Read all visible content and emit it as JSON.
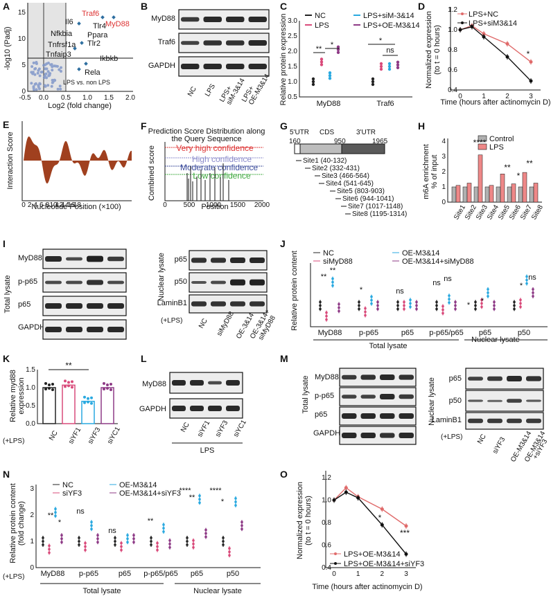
{
  "panelA": {
    "letter": "A",
    "ylabel": "-log10 (Padj)",
    "xlabel": "Log2 (fold change)",
    "legend": "LPS vs. non LPS",
    "xticks": [
      "-0.5",
      "0.0",
      "0.5",
      "1.0",
      "1.5",
      "2.0"
    ],
    "yticks": [
      "0",
      "5",
      "10",
      "15"
    ],
    "genes": [
      "Traf6",
      "MyD88",
      "Il6",
      "Tlr4",
      "Nfkbia",
      "Ppara",
      "Tnfrsf1a",
      "Tlr2",
      "Ikbkb",
      "Tnfaip3",
      "Rela"
    ]
  },
  "panelB": {
    "letter": "B",
    "rows": [
      "MyD88",
      "Traf6",
      "GAPDH"
    ],
    "lanes": [
      "NC",
      "LPS",
      "LPS+\nsiM-3&14",
      "LPS+\nOE-M3&14"
    ]
  },
  "panelC": {
    "letter": "C",
    "ylabel": "Relative protein expression",
    "legend": [
      "NC",
      "LPS",
      "LPS+siM-3&14",
      "LPS+OE-M3&14"
    ],
    "groups": [
      "MyD88",
      "Traf6"
    ],
    "sig": [
      "**",
      "*",
      "*",
      "ns"
    ],
    "chart_data": {
      "type": "dot",
      "categories": [
        "MyD88",
        "Traf6"
      ],
      "ylim": [
        0.5,
        3.0
      ],
      "series": [
        {
          "name": "NC",
          "values": [
            1.0,
            1.0
          ]
        },
        {
          "name": "LPS",
          "values": [
            1.65,
            1.5
          ]
        },
        {
          "name": "LPS+siM-3&14",
          "values": [
            1.2,
            1.5
          ]
        },
        {
          "name": "LPS+OE-M3&14",
          "values": [
            2.05,
            1.55
          ]
        }
      ]
    },
    "yticks": [
      "0.5",
      "1.0",
      "1.5",
      "2.0",
      "2.5",
      "3.0"
    ]
  },
  "panelD": {
    "letter": "D",
    "ylabel": "Normalized expression\n(to t = 0 hours)",
    "xlabel": "Time (hours after actinomycin D)",
    "legend": [
      "LPS+NC",
      "LPS+siM3&14"
    ],
    "xticks": [
      "0",
      "1",
      "2",
      "3"
    ],
    "yticks": [
      "0.4",
      "0.6",
      "0.8",
      "1.0",
      "1.2"
    ],
    "sig": "*",
    "chart_data": {
      "type": "line",
      "x": [
        0,
        0.5,
        1,
        2,
        3
      ],
      "ylim": [
        0.4,
        1.2
      ],
      "series": [
        {
          "name": "LPS+NC",
          "values": [
            1.0,
            1.04,
            0.96,
            0.86,
            0.68
          ]
        },
        {
          "name": "LPS+siM3&14",
          "values": [
            1.0,
            1.03,
            0.93,
            0.73,
            0.49
          ]
        }
      ]
    }
  },
  "panelE": {
    "letter": "E",
    "ylabel": "Interaction Score",
    "xlabel": "Nucleotide Position (×100)",
    "xticks": [
      "0",
      "2",
      "4",
      "6",
      "8",
      "10",
      "12",
      "14",
      "16",
      "18"
    ]
  },
  "panelF": {
    "letter": "F",
    "title": "Prediction Score Distribution along\nthe Query Sequence",
    "ylabel": "Combined score",
    "xlabel": "Position",
    "xticks": [
      "0",
      "500",
      "1000",
      "1500",
      "2000"
    ],
    "levels": [
      "Very high confidence",
      "High confidence",
      "Moderate confidence",
      "Low confidence"
    ]
  },
  "panelG": {
    "letter": "G",
    "regions": [
      "5'UTR",
      "CDS",
      "3'UTR"
    ],
    "positions": [
      "160",
      "950",
      "1965"
    ],
    "sites": [
      "Site1 (40-132)",
      "Site2 (332-431)",
      "Site3 (466-564)",
      "Site4 (541-645)",
      "Site5 (803-903)",
      "Site6 (944-1041)",
      "Site7 (1017-1148)",
      "Site8 (1195-1314)"
    ]
  },
  "panelH": {
    "letter": "H",
    "ylabel": "m6A enrichment\n% of input",
    "legend": [
      "Control",
      "LPS"
    ],
    "categories": [
      "Site1",
      "Site2",
      "Site3",
      "Site4",
      "Site5",
      "Site6",
      "Site7",
      "Site8"
    ],
    "yticks": [
      "0",
      "1",
      "2",
      "3",
      "4"
    ],
    "sig": [
      "****",
      "**",
      "*",
      "**"
    ],
    "chart_data": {
      "type": "bar",
      "ylim": [
        0,
        4
      ],
      "series": [
        {
          "name": "Control",
          "values": [
            1.0,
            1.0,
            1.0,
            1.0,
            1.0,
            1.0,
            1.0,
            1.0
          ]
        },
        {
          "name": "LPS",
          "values": [
            1.1,
            1.25,
            3.1,
            1.1,
            1.85,
            1.2,
            1.95,
            1.25
          ]
        }
      ]
    }
  },
  "panelI": {
    "letter": "I",
    "sideL": "Total lysate",
    "sideR": "Nuclear lysate",
    "rowsL": [
      "MyD88",
      "p-p65",
      "p65",
      "GAPDH"
    ],
    "rowsR": [
      "p65",
      "p50",
      "LaminB1"
    ],
    "lps": "(+LPS)",
    "lanes": [
      "NC",
      "siMyD88",
      "OE-3&14",
      "OE-3&14+\nsiMyD88"
    ]
  },
  "panelJ": {
    "letter": "J",
    "ylabel": "Relative protein content",
    "legend": [
      "NC",
      "siMyD88",
      "OE-M3&14",
      "OE-M3&14+siMyD88"
    ],
    "categories": [
      "MyD88",
      "p-p65",
      "p65",
      "p-p65/p65",
      "p65",
      "p50"
    ],
    "group1": "Total lysate",
    "group2": "Nuclear lysate",
    "sig": [
      "**",
      "**",
      "*",
      "ns",
      "ns",
      "ns",
      "*",
      "*",
      "*",
      "ns"
    ],
    "chart_data": {
      "type": "dot",
      "ylim": [
        0,
        3
      ],
      "series": [
        {
          "name": "NC",
          "values": [
            1,
            1,
            1,
            1,
            1,
            1
          ]
        },
        {
          "name": "siMyD88",
          "values": [
            0.5,
            0.7,
            1.0,
            0.8,
            1.1,
            1.1
          ]
        },
        {
          "name": "OE-M3&14",
          "values": [
            2.1,
            1.25,
            1.1,
            1.3,
            1.6,
            2.2
          ]
        },
        {
          "name": "OE-M3&14+siMyD88",
          "values": [
            0.9,
            1.0,
            1.0,
            1.0,
            1.0,
            1.6
          ]
        }
      ]
    }
  },
  "panelK": {
    "letter": "K",
    "ylabel": "Relative myd88\nexpression",
    "categories": [
      "NC",
      "siYF1",
      "siYF3",
      "siYC1"
    ],
    "lps": "(+LPS)",
    "sig": "**",
    "yticks": [
      "0.0",
      "0.5",
      "1.0",
      "1.5"
    ],
    "chart_data": {
      "type": "bar",
      "ylim": [
        0,
        1.5
      ],
      "values": [
        1.0,
        1.07,
        0.62,
        1.0
      ]
    }
  },
  "panelL": {
    "letter": "L",
    "rows": [
      "MyD88",
      "GAPDH"
    ],
    "lanes": [
      "NC",
      "siYF1",
      "siYF3",
      "siYC1"
    ],
    "caption": "LPS"
  },
  "panelM": {
    "letter": "M",
    "sideL": "Total lysate",
    "sideR": "Nuclear lysate",
    "rowsL": [
      "MyD88",
      "p-p65",
      "p65",
      "GAPDH"
    ],
    "rowsR": [
      "p65",
      "p50",
      "LaminB1"
    ],
    "lps": "(+LPS)",
    "lanes": [
      "NC",
      "siYF3",
      "OE-M3&14",
      "OE-M3&14\n+siYF3"
    ]
  },
  "panelN": {
    "letter": "N",
    "ylabel": "Relative protein content\n(fold change)",
    "legend": [
      "NC",
      "siYF3",
      "OE-M3&14",
      "OE-M3&14+siYF3"
    ],
    "categories": [
      "MyD88",
      "p-p65",
      "p65",
      "p-p65/p65",
      "p65",
      "p50"
    ],
    "group1": "Total lysate",
    "group2": "Nuclear lysate",
    "lps": "(+LPS)",
    "yticks": [
      "0",
      "1",
      "2",
      "3"
    ],
    "sig": [
      "**",
      "*",
      "ns",
      "ns",
      "**",
      "****",
      "**",
      "****",
      "*"
    ],
    "chart_data": {
      "type": "dot",
      "ylim": [
        0,
        3
      ],
      "series": [
        {
          "name": "NC",
          "values": [
            1,
            1,
            1,
            1,
            1,
            1
          ]
        },
        {
          "name": "siYF3",
          "values": [
            0.7,
            0.8,
            0.8,
            0.8,
            0.9,
            0.6
          ]
        },
        {
          "name": "OE-M3&14",
          "values": [
            2.1,
            1.6,
            1.1,
            1.5,
            2.6,
            2.5
          ]
        },
        {
          "name": "OE-M3&14+siYF3",
          "values": [
            1.1,
            1.1,
            1.1,
            0.9,
            1.3,
            1.6
          ]
        }
      ]
    }
  },
  "panelO": {
    "letter": "O",
    "ylabel": "Normalized expression\n(to t = 0 hours)",
    "xlabel": "Time (hours after actinomycin D)",
    "legend": [
      "LPS+OE-M3&14",
      "LPS+OE-M3&14+siYF3"
    ],
    "xticks": [
      "0",
      "1",
      "2",
      "3"
    ],
    "yticks": [
      "0.4",
      "0.6",
      "0.8",
      "1.0",
      "1.2"
    ],
    "sig": [
      "*",
      "***"
    ],
    "chart_data": {
      "type": "line",
      "x": [
        0,
        0.5,
        1,
        2,
        3
      ],
      "ylim": [
        0.4,
        1.2
      ],
      "series": [
        {
          "name": "LPS+OE-M3&14",
          "values": [
            1.0,
            1.11,
            1.03,
            0.92,
            0.77
          ]
        },
        {
          "name": "LPS+OE-M3&14+siYF3",
          "values": [
            1.0,
            1.07,
            1.02,
            0.78,
            0.52
          ]
        }
      ]
    }
  },
  "colors": {
    "nc": "#222222",
    "pink": "#d94a7a",
    "blue": "#29a9e0",
    "purple": "#8e3a86",
    "red": "#e06b6b",
    "gray": "#b0b0b0",
    "brown": "#a0401f"
  }
}
